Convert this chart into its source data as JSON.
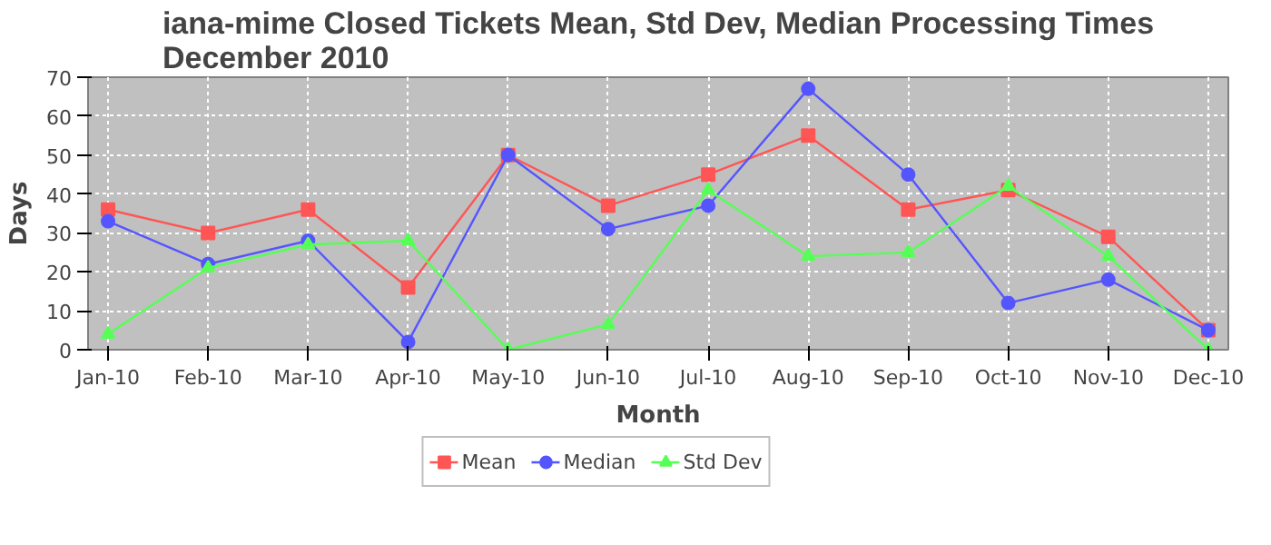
{
  "chart_data": {
    "type": "line",
    "title": "iana-mime Closed Tickets Mean, Std Dev, Median Processing Times\nDecember 2010",
    "xlabel": "Month",
    "ylabel": "Days",
    "categories": [
      "Jan-10",
      "Feb-10",
      "Mar-10",
      "Apr-10",
      "May-10",
      "Jun-10",
      "Jul-10",
      "Aug-10",
      "Sep-10",
      "Oct-10",
      "Nov-10",
      "Dec-10"
    ],
    "ylim": [
      0,
      70
    ],
    "yticks": [
      0,
      10,
      20,
      30,
      40,
      50,
      60,
      70
    ],
    "grid": true,
    "legend": "bottom",
    "series": [
      {
        "name": "Mean",
        "color": "#ff5555",
        "marker": "square",
        "values": [
          36,
          30,
          36,
          16,
          50,
          37,
          45,
          55,
          36,
          41,
          29,
          5
        ]
      },
      {
        "name": "Median",
        "color": "#5555ff",
        "marker": "circle",
        "values": [
          33,
          22,
          28,
          2,
          50,
          31,
          37,
          67,
          45,
          12,
          18,
          5
        ]
      },
      {
        "name": "Std Dev",
        "color": "#55ff55",
        "marker": "triangle",
        "values": [
          4,
          21,
          27,
          28,
          0,
          6.5,
          41,
          24,
          25,
          42,
          24,
          0
        ]
      }
    ]
  }
}
